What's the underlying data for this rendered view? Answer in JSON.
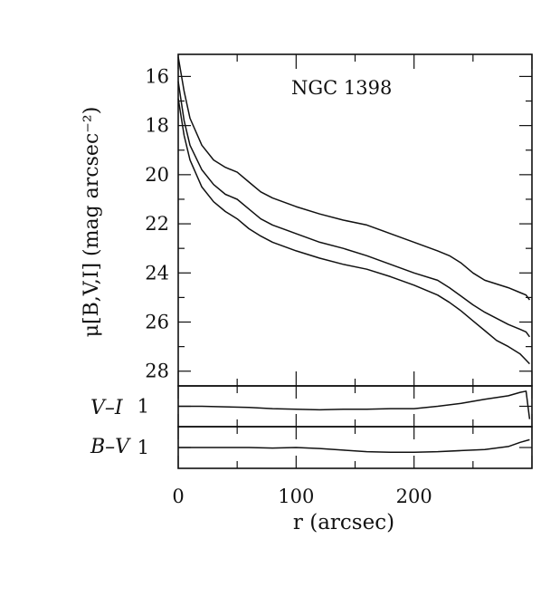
{
  "chart_data": [
    {
      "type": "line",
      "panel": "surface-brightness",
      "title": "NGC 1398",
      "ylabel": "μ[B,V,I] (mag arcsec⁻²)",
      "xlabel": "",
      "xlim": [
        0,
        300
      ],
      "ylim": [
        28.6,
        15.1
      ],
      "y_inverted": true,
      "y_ticks": [
        16,
        18,
        20,
        22,
        24,
        26,
        28
      ],
      "series": [
        {
          "name": "",
          "x": [
            0,
            5,
            10,
            20,
            30,
            40,
            50,
            60,
            70,
            80,
            100,
            120,
            140,
            160,
            180,
            200,
            220,
            230,
            240,
            250,
            260,
            270,
            280,
            290,
            295,
            298
          ],
          "y": [
            15.2,
            16.6,
            17.7,
            18.8,
            19.4,
            19.7,
            19.9,
            20.3,
            20.7,
            20.95,
            21.3,
            21.6,
            21.85,
            22.05,
            22.4,
            22.75,
            23.1,
            23.3,
            23.6,
            24.0,
            24.3,
            24.45,
            24.6,
            24.8,
            24.9,
            25.1
          ]
        },
        {
          "name": "",
          "x": [
            0,
            5,
            10,
            20,
            30,
            40,
            50,
            60,
            70,
            80,
            100,
            120,
            140,
            160,
            180,
            200,
            220,
            230,
            240,
            250,
            260,
            270,
            280,
            290,
            295,
            298
          ],
          "y": [
            16.2,
            17.8,
            18.8,
            19.8,
            20.4,
            20.8,
            21.0,
            21.4,
            21.8,
            22.05,
            22.4,
            22.75,
            23.0,
            23.3,
            23.65,
            24.0,
            24.3,
            24.6,
            24.95,
            25.3,
            25.6,
            25.85,
            26.1,
            26.3,
            26.4,
            26.6
          ]
        },
        {
          "name": "",
          "x": [
            0,
            5,
            10,
            20,
            30,
            40,
            50,
            60,
            70,
            80,
            100,
            120,
            140,
            160,
            180,
            200,
            220,
            230,
            240,
            250,
            260,
            270,
            280,
            290,
            295,
            298
          ],
          "y": [
            16.9,
            18.4,
            19.4,
            20.5,
            21.1,
            21.5,
            21.8,
            22.2,
            22.5,
            22.75,
            23.1,
            23.4,
            23.65,
            23.85,
            24.15,
            24.5,
            24.9,
            25.2,
            25.55,
            25.95,
            26.35,
            26.75,
            27.0,
            27.3,
            27.55,
            27.7
          ]
        }
      ]
    },
    {
      "type": "line",
      "panel": "color-index",
      "ylabel": "V–I",
      "xlim": [
        0,
        300
      ],
      "ylim": [
        1.35,
        0.65
      ],
      "y_inverted": true,
      "y_ticks": [
        1
      ],
      "series": [
        {
          "name": "",
          "x": [
            0,
            20,
            40,
            60,
            80,
            100,
            120,
            140,
            160,
            180,
            200,
            220,
            240,
            260,
            280,
            290,
            295,
            298
          ],
          "y": [
            1.0,
            1.0,
            1.01,
            1.02,
            1.04,
            1.05,
            1.06,
            1.05,
            1.05,
            1.04,
            1.04,
            1.0,
            0.95,
            0.88,
            0.82,
            0.76,
            0.74,
            1.22
          ]
        }
      ]
    },
    {
      "type": "line",
      "panel": "color-index",
      "ylabel": "B–V",
      "xlim": [
        0,
        300
      ],
      "ylim": [
        1.4,
        0.6
      ],
      "y_inverted": true,
      "y_ticks": [
        1
      ],
      "series": [
        {
          "name": "",
          "x": [
            0,
            20,
            40,
            60,
            80,
            100,
            120,
            140,
            160,
            180,
            200,
            220,
            240,
            260,
            280,
            290,
            298
          ],
          "y": [
            1.0,
            1.0,
            1.0,
            1.0,
            1.01,
            1.0,
            1.02,
            1.05,
            1.08,
            1.09,
            1.09,
            1.08,
            1.06,
            1.04,
            0.98,
            0.9,
            0.85
          ]
        }
      ]
    }
  ],
  "x_axis": {
    "label": "r (arcsec)",
    "tick_labels": [
      "0",
      "100",
      "200"
    ],
    "ticks": [
      0,
      100,
      200
    ]
  }
}
